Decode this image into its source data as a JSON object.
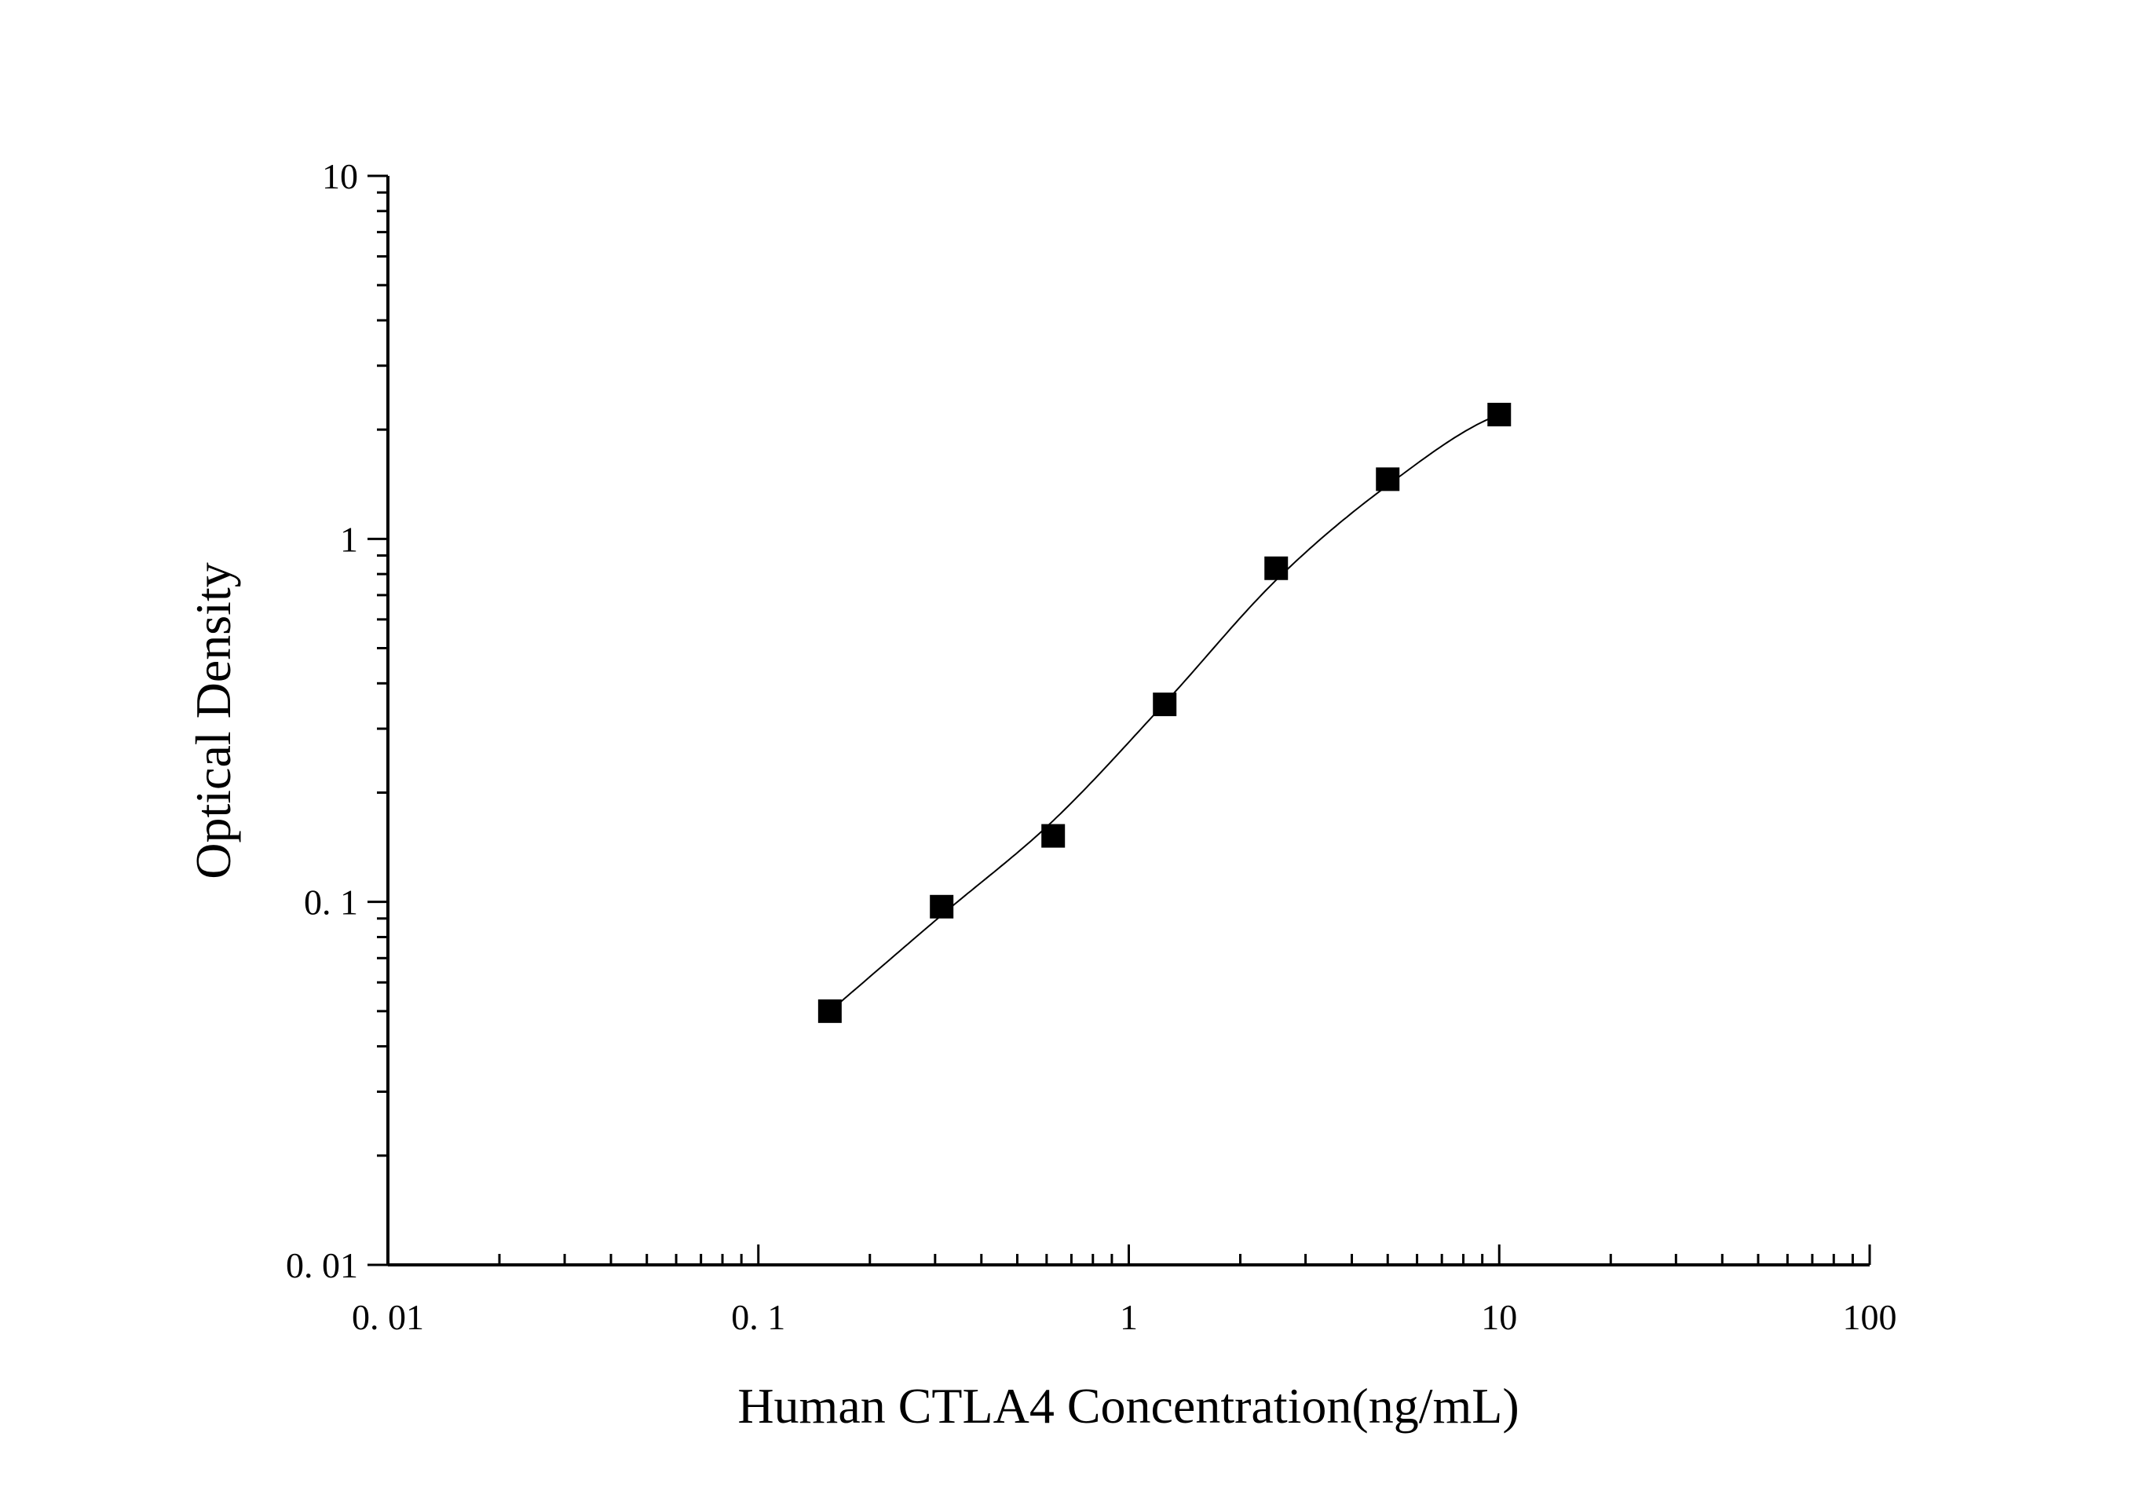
{
  "chart_data": {
    "type": "scatter",
    "title": "",
    "xlabel": "Human CTLA4 Concentration(ng/mL)",
    "ylabel": "Optical Density",
    "x_scale": "log",
    "y_scale": "log",
    "xlim": [
      0.01,
      100
    ],
    "ylim": [
      0.01,
      10
    ],
    "x_ticks": [
      {
        "value": 0.01,
        "label": "0. 01"
      },
      {
        "value": 0.1,
        "label": "0. 1"
      },
      {
        "value": 1,
        "label": "1"
      },
      {
        "value": 10,
        "label": "10"
      },
      {
        "value": 100,
        "label": "100"
      }
    ],
    "y_ticks": [
      {
        "value": 0.01,
        "label": "0. 01"
      },
      {
        "value": 0.1,
        "label": "0. 1"
      },
      {
        "value": 1,
        "label": "1"
      },
      {
        "value": 10,
        "label": "10"
      }
    ],
    "grid": false,
    "legend": "none",
    "series": [
      {
        "marker": "square",
        "color": "#000000",
        "x": [
          0.156,
          0.3125,
          0.625,
          1.25,
          2.5,
          5,
          10
        ],
        "y": [
          0.05,
          0.097,
          0.152,
          0.35,
          0.83,
          1.46,
          2.2
        ]
      }
    ],
    "fit_curve": {
      "type": "4PL",
      "color": "#000000",
      "x_range": [
        0.156,
        10
      ]
    }
  }
}
